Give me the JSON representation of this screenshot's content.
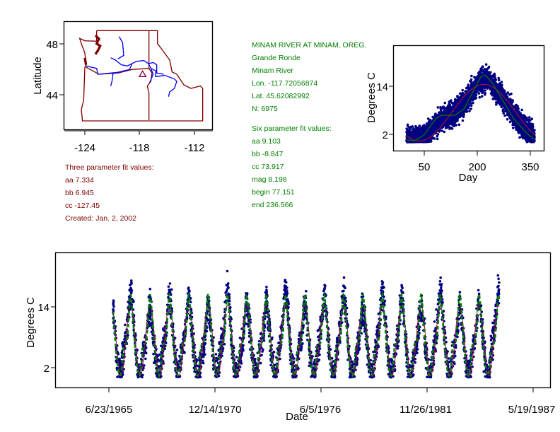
{
  "station": {
    "title": "MINAM RIVER AT MINAM, OREG.",
    "basin": "Grande Ronde",
    "river": "Minam River",
    "lon": "Lon. -117.72056874",
    "lat": "Lat. 45.62082992",
    "n": "N: 6975"
  },
  "six_param": {
    "heading": "Six parameter fit values:",
    "aa": "aa 9.103",
    "bb": "bb -8.847",
    "cc": "cc 73.917",
    "mag": "mag 8.198",
    "begin": "begin 77.151",
    "end": "end 236.566"
  },
  "three_param": {
    "heading": "Three parameter fit values:",
    "aa": "aa 7.334",
    "bb": "bb 6.945",
    "cc": "cc -127.45",
    "created": "Created:   Jan. 2, 2002"
  },
  "colors": {
    "text_green": "#008000",
    "text_red": "#800000",
    "points": "#000080",
    "fit3": "#a0103c",
    "fit6": "#008000",
    "river": "#0000ff",
    "border": "#800000"
  },
  "chart_data": [
    {
      "type": "map",
      "ylabel": "Latitude",
      "xticks": [
        "-124",
        "-118",
        "-112"
      ],
      "yticks": [
        "48",
        "44"
      ],
      "xlim": [
        -126.3,
        -109.9
      ],
      "ylim": [
        41.3,
        49.8
      ],
      "marker": {
        "symbol": "triangle",
        "lon": -117.72,
        "lat": 45.62
      }
    },
    {
      "type": "scatter",
      "xlabel": "Day",
      "ylabel": "Degrees C",
      "xticks": [
        "50",
        "200",
        "350"
      ],
      "yticks": [
        "14",
        "2"
      ],
      "xlim": [
        -38,
        390
      ],
      "ylim": [
        -2,
        24.3
      ],
      "n_points": 6975,
      "fit_three_param": {
        "aa": 7.334,
        "bb": 6.945,
        "cc": -127.45
      },
      "fit_six_param_curve": {
        "day": [
          0,
          23,
          50,
          83,
          100,
          137,
          163,
          190,
          210,
          223,
          243,
          270,
          303,
          337,
          362
        ],
        "value": [
          0.7,
          0.4,
          1.9,
          5.9,
          6.7,
          6.7,
          8.3,
          12.9,
          16.1,
          16.6,
          14.6,
          10.6,
          5.9,
          2.5,
          0.7
        ]
      }
    },
    {
      "type": "scatter",
      "xlabel": "Date",
      "ylabel": "Degrees C",
      "xticks": [
        "6/23/1965",
        "12/14/1970",
        "6/5/1976",
        "11/26/1981",
        "5/19/1987"
      ],
      "xtick_days_since_start": [
        0,
        2000,
        4000,
        6000,
        8000
      ],
      "yticks": [
        "14",
        "2"
      ],
      "xlim_days": [
        -1013,
        8320
      ],
      "ylim": [
        -1.9,
        24.7
      ],
      "data_range_days": [
        80,
        7360
      ]
    }
  ]
}
